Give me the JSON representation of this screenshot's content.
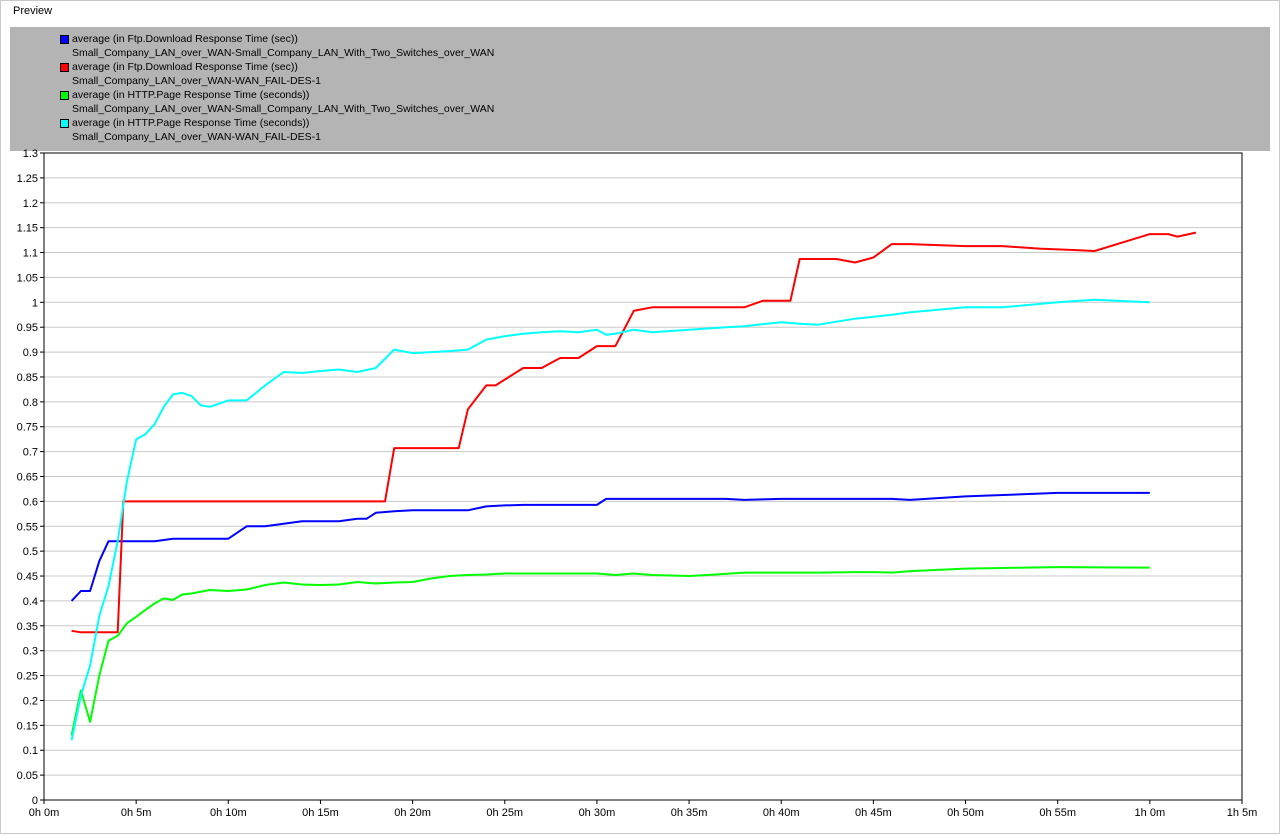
{
  "panel": {
    "title": "Preview"
  },
  "colors": {
    "plot_background": "#ffffff",
    "gridline": "#c8c8c8",
    "legend_background": "#b4b4b4"
  },
  "legend": [
    {
      "name": "average (in Ftp.Download Response Time (sec))",
      "scenario": "Small_Company_LAN_over_WAN-Small_Company_LAN_With_Two_Switches_over_WAN",
      "color": "#0000ff"
    },
    {
      "name": "average (in Ftp.Download Response Time (sec))",
      "scenario": "Small_Company_LAN_over_WAN-WAN_FAIL-DES-1",
      "color": "#ff0000"
    },
    {
      "name": "average (in HTTP.Page Response Time (seconds))",
      "scenario": "Small_Company_LAN_over_WAN-Small_Company_LAN_With_Two_Switches_over_WAN",
      "color": "#00ff00"
    },
    {
      "name": "average (in HTTP.Page Response Time (seconds))",
      "scenario": "Small_Company_LAN_over_WAN-WAN_FAIL-DES-1",
      "color": "#00ffff"
    }
  ],
  "chart_data": {
    "type": "line",
    "title": "",
    "xlabel": "",
    "ylabel": "",
    "x_unit": "minutes",
    "xlim": [
      0,
      65
    ],
    "ylim": [
      0,
      1.3
    ],
    "grid": true,
    "legend_placement": "top-left",
    "x_tick_labels": [
      "0h 0m",
      "0h 5m",
      "0h 10m",
      "0h 15m",
      "0h 20m",
      "0h 25m",
      "0h 30m",
      "0h 35m",
      "0h 40m",
      "0h 45m",
      "0h 50m",
      "0h 55m",
      "1h 0m",
      "1h 5m"
    ],
    "y_tick_labels": [
      "0",
      "0.05",
      "0.1",
      "0.15",
      "0.2",
      "0.25",
      "0.3",
      "0.35",
      "0.4",
      "0.45",
      "0.5",
      "0.55",
      "0.6",
      "0.65",
      "0.7",
      "0.75",
      "0.8",
      "0.85",
      "0.9",
      "0.95",
      "1",
      "1.05",
      "1.1",
      "1.15",
      "1.2",
      "1.25",
      "1.3"
    ],
    "series": [
      {
        "color": "#0000ff",
        "x": [
          1.5,
          2,
          2.5,
          3,
          3.5,
          4,
          5,
          6,
          7,
          8,
          9,
          10,
          11,
          12,
          13,
          14,
          15,
          16,
          17,
          17.5,
          18,
          19,
          20,
          21,
          22,
          23,
          24,
          25,
          26,
          27,
          28,
          29,
          30,
          30.5,
          31,
          35,
          37,
          38,
          40,
          45,
          46,
          47,
          50,
          55,
          60
        ],
        "y": [
          0.4,
          0.42,
          0.42,
          0.48,
          0.52,
          0.52,
          0.52,
          0.52,
          0.525,
          0.525,
          0.525,
          0.525,
          0.55,
          0.55,
          0.555,
          0.56,
          0.56,
          0.56,
          0.565,
          0.565,
          0.577,
          0.58,
          0.582,
          0.582,
          0.582,
          0.582,
          0.59,
          0.592,
          0.593,
          0.593,
          0.593,
          0.593,
          0.593,
          0.605,
          0.605,
          0.605,
          0.605,
          0.603,
          0.605,
          0.605,
          0.605,
          0.603,
          0.61,
          0.617,
          0.617
        ]
      },
      {
        "color": "#ff0000",
        "x": [
          1.5,
          2,
          3,
          4,
          4.3,
          5,
          10,
          15,
          18.5,
          19,
          21.5,
          22.5,
          23,
          24,
          24.5,
          26,
          27,
          28,
          29,
          30,
          31,
          32,
          33,
          35,
          38,
          39,
          40.5,
          41,
          43,
          44,
          45,
          46,
          47,
          50,
          52,
          54,
          56,
          57,
          60,
          61,
          61.5,
          62.5
        ],
        "y": [
          0.34,
          0.337,
          0.337,
          0.337,
          0.6,
          0.6,
          0.6,
          0.6,
          0.6,
          0.707,
          0.707,
          0.707,
          0.785,
          0.833,
          0.833,
          0.868,
          0.868,
          0.888,
          0.888,
          0.912,
          0.912,
          0.983,
          0.99,
          0.99,
          0.99,
          1.003,
          1.003,
          1.087,
          1.087,
          1.08,
          1.09,
          1.117,
          1.117,
          1.113,
          1.113,
          1.108,
          1.105,
          1.103,
          1.137,
          1.137,
          1.132,
          1.14
        ]
      },
      {
        "color": "#00ff00",
        "x": [
          1.5,
          2,
          2.5,
          3,
          3.5,
          4,
          4.5,
          5,
          5.5,
          6,
          6.5,
          7,
          7.5,
          8,
          9,
          10,
          11,
          12,
          13,
          14,
          15,
          16,
          17,
          18,
          19,
          20,
          21,
          22,
          23,
          24,
          25,
          26,
          28,
          30,
          31,
          32,
          33,
          35,
          36,
          38,
          40,
          42,
          44,
          45,
          46,
          47,
          50,
          55,
          60
        ],
        "y": [
          0.13,
          0.22,
          0.157,
          0.25,
          0.32,
          0.33,
          0.355,
          0.368,
          0.382,
          0.395,
          0.405,
          0.402,
          0.413,
          0.415,
          0.422,
          0.42,
          0.423,
          0.432,
          0.437,
          0.433,
          0.432,
          0.433,
          0.438,
          0.435,
          0.437,
          0.438,
          0.445,
          0.45,
          0.452,
          0.453,
          0.455,
          0.455,
          0.455,
          0.455,
          0.452,
          0.455,
          0.452,
          0.45,
          0.452,
          0.457,
          0.457,
          0.457,
          0.458,
          0.458,
          0.457,
          0.46,
          0.465,
          0.468,
          0.467
        ]
      },
      {
        "color": "#00ffff",
        "x": [
          1.5,
          2,
          2.5,
          3,
          3.5,
          4,
          4.5,
          5,
          5.5,
          6,
          6.5,
          7,
          7.5,
          8,
          8.5,
          9,
          10,
          11,
          12,
          13,
          14,
          15,
          16,
          17,
          18,
          19,
          20,
          21,
          22,
          23,
          24,
          25,
          26,
          27,
          28,
          29,
          30,
          30.5,
          31,
          32,
          33,
          35,
          37,
          38,
          40,
          41,
          42,
          44,
          46,
          47,
          50,
          52,
          55,
          57,
          60
        ],
        "y": [
          0.12,
          0.21,
          0.27,
          0.37,
          0.43,
          0.52,
          0.64,
          0.725,
          0.735,
          0.755,
          0.79,
          0.815,
          0.818,
          0.812,
          0.793,
          0.79,
          0.803,
          0.803,
          0.833,
          0.86,
          0.858,
          0.862,
          0.865,
          0.86,
          0.868,
          0.905,
          0.898,
          0.9,
          0.902,
          0.905,
          0.925,
          0.932,
          0.937,
          0.94,
          0.942,
          0.94,
          0.945,
          0.935,
          0.937,
          0.945,
          0.94,
          0.945,
          0.95,
          0.952,
          0.96,
          0.957,
          0.955,
          0.967,
          0.975,
          0.98,
          0.99,
          0.99,
          1.0,
          1.005,
          1.0
        ]
      }
    ]
  }
}
